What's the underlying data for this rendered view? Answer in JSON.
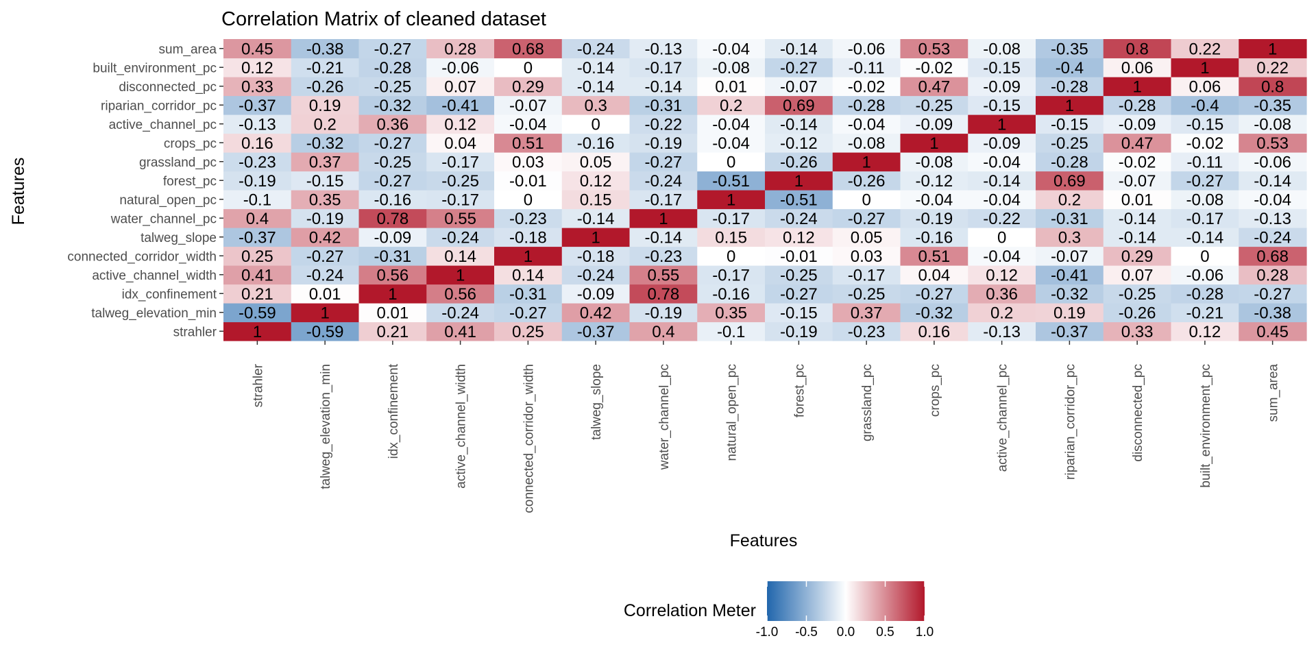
{
  "chart_data": {
    "type": "heatmap",
    "title": "Correlation Matrix of cleaned dataset",
    "xlabel": "Features",
    "ylabel": "Features",
    "features": [
      "strahler",
      "talweg_elevation_min",
      "idx_confinement",
      "active_channel_width",
      "connected_corridor_width",
      "talweg_slope",
      "water_channel_pc",
      "natural_open_pc",
      "forest_pc",
      "grassland_pc",
      "crops_pc",
      "active_channel_pc",
      "riparian_corridor_pc",
      "disconnected_pc",
      "built_environment_pc",
      "sum_area"
    ],
    "matrix": [
      [
        1,
        -0.59,
        0.21,
        0.41,
        0.25,
        -0.37,
        0.4,
        -0.1,
        -0.19,
        -0.23,
        0.16,
        -0.13,
        -0.37,
        0.33,
        0.12,
        0.45
      ],
      [
        -0.59,
        1,
        0.01,
        -0.24,
        -0.27,
        0.42,
        -0.19,
        0.35,
        -0.15,
        0.37,
        -0.32,
        0.2,
        0.19,
        -0.26,
        -0.21,
        -0.38
      ],
      [
        0.21,
        0.01,
        1,
        0.56,
        -0.31,
        -0.09,
        0.78,
        -0.16,
        -0.27,
        -0.25,
        -0.27,
        0.36,
        -0.32,
        -0.25,
        -0.28,
        -0.27
      ],
      [
        0.41,
        -0.24,
        0.56,
        1,
        0.14,
        -0.24,
        0.55,
        -0.17,
        -0.25,
        -0.17,
        0.04,
        0.12,
        -0.41,
        0.07,
        -0.06,
        0.28
      ],
      [
        0.25,
        -0.27,
        -0.31,
        0.14,
        1,
        -0.18,
        -0.23,
        0,
        -0.01,
        0.03,
        0.51,
        -0.04,
        -0.07,
        0.29,
        0,
        0.68
      ],
      [
        -0.37,
        0.42,
        -0.09,
        -0.24,
        -0.18,
        1,
        -0.14,
        0.15,
        0.12,
        0.05,
        -0.16,
        0,
        0.3,
        -0.14,
        -0.14,
        -0.24
      ],
      [
        0.4,
        -0.19,
        0.78,
        0.55,
        -0.23,
        -0.14,
        1,
        -0.17,
        -0.24,
        -0.27,
        -0.19,
        -0.22,
        -0.31,
        -0.14,
        -0.17,
        -0.13
      ],
      [
        -0.1,
        0.35,
        -0.16,
        -0.17,
        0,
        0.15,
        -0.17,
        1,
        -0.51,
        0,
        -0.04,
        -0.04,
        0.2,
        0.01,
        -0.08,
        -0.04
      ],
      [
        -0.19,
        -0.15,
        -0.27,
        -0.25,
        -0.01,
        0.12,
        -0.24,
        -0.51,
        1,
        -0.26,
        -0.12,
        -0.14,
        0.69,
        -0.07,
        -0.27,
        -0.14
      ],
      [
        -0.23,
        0.37,
        -0.25,
        -0.17,
        0.03,
        0.05,
        -0.27,
        0,
        -0.26,
        1,
        -0.08,
        -0.04,
        -0.28,
        -0.02,
        -0.11,
        -0.06
      ],
      [
        0.16,
        -0.32,
        -0.27,
        0.04,
        0.51,
        -0.16,
        -0.19,
        -0.04,
        -0.12,
        -0.08,
        1,
        -0.09,
        -0.25,
        0.47,
        -0.02,
        0.53
      ],
      [
        -0.13,
        0.2,
        0.36,
        0.12,
        -0.04,
        0,
        -0.22,
        -0.04,
        -0.14,
        -0.04,
        -0.09,
        1,
        -0.15,
        -0.09,
        -0.15,
        -0.08
      ],
      [
        -0.37,
        0.19,
        -0.32,
        -0.41,
        -0.07,
        0.3,
        -0.31,
        0.2,
        0.69,
        -0.28,
        -0.25,
        -0.15,
        1,
        -0.28,
        -0.4,
        -0.35
      ],
      [
        0.33,
        -0.26,
        -0.25,
        0.07,
        0.29,
        -0.14,
        -0.14,
        0.01,
        -0.07,
        -0.02,
        0.47,
        -0.09,
        -0.28,
        1,
        0.06,
        0.8
      ],
      [
        0.12,
        -0.21,
        -0.28,
        -0.06,
        0,
        -0.14,
        -0.17,
        -0.08,
        -0.27,
        -0.11,
        -0.02,
        -0.15,
        -0.4,
        0.06,
        1,
        0.22
      ],
      [
        0.45,
        -0.38,
        -0.27,
        0.28,
        0.68,
        -0.24,
        -0.13,
        -0.04,
        -0.14,
        -0.06,
        0.53,
        -0.08,
        -0.35,
        0.8,
        0.22,
        1
      ]
    ],
    "legend": {
      "title": "Correlation Meter",
      "placement": "bottom",
      "range": [
        -1,
        1
      ],
      "ticks": [
        "-1.0",
        "-0.5",
        "0.0",
        "0.5",
        "1.0"
      ],
      "colors": {
        "low": "#2166ac",
        "mid": "#ffffff",
        "high": "#b2182b"
      }
    },
    "grid": true
  }
}
